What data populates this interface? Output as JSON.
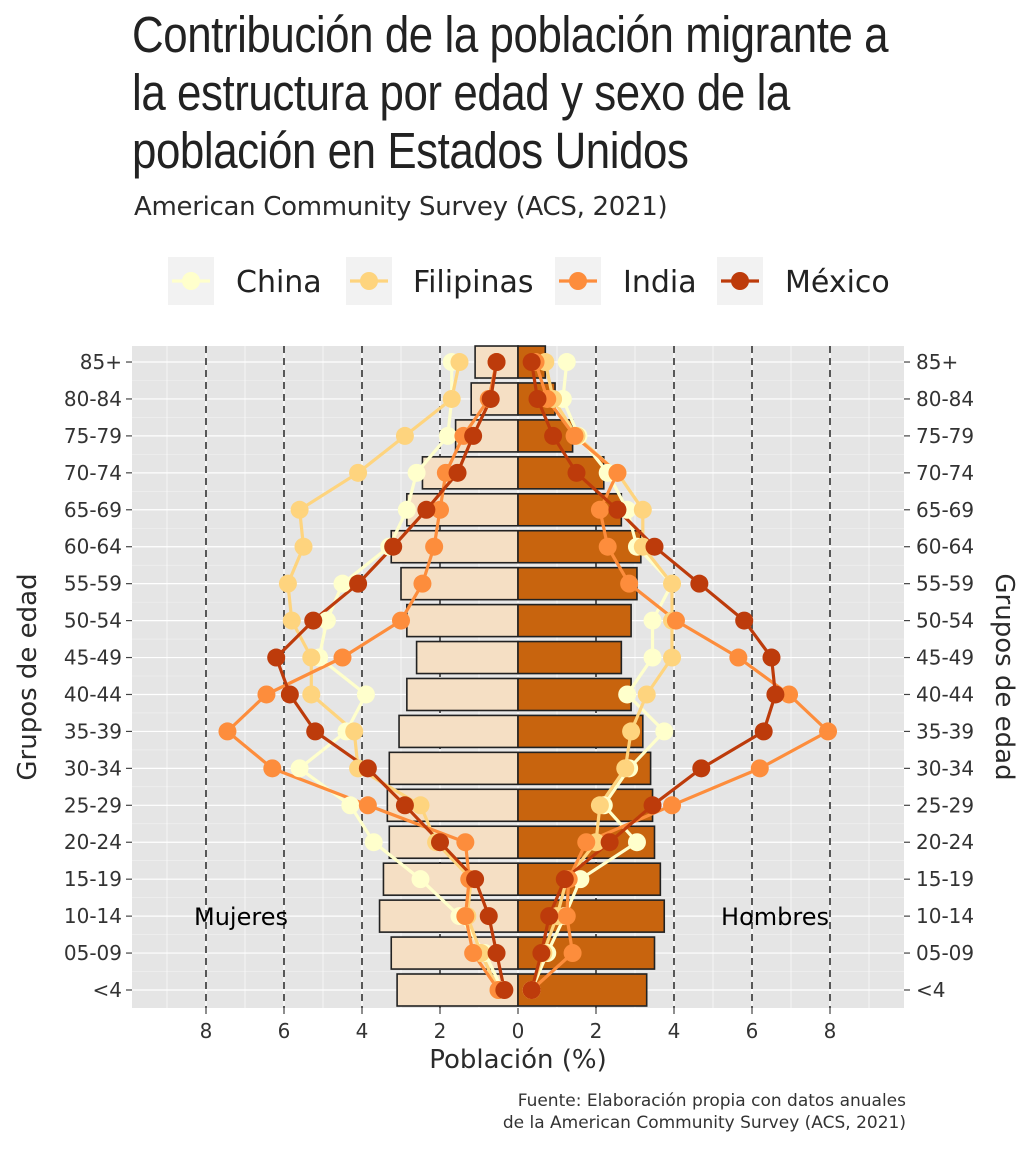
{
  "title": "Contribución de la población migrante a la estructura por edad y sexo de la población en Estados Unidos",
  "subtitle": "American Community Survey (ACS, 2021)",
  "caption_line1": "Fuente: Elaboración propia con datos anuales",
  "caption_line2": "de la American Community Survey (ACS, 2021)",
  "chart_data": {
    "type": "bar",
    "xlabel": "Población (%)",
    "ylabel": "Grupos de edad",
    "xlim": [
      -10,
      10
    ],
    "x_ticks": [
      -8,
      -6,
      -4,
      -2,
      0,
      2,
      4,
      6,
      8
    ],
    "x_tick_labels": [
      "8",
      "6",
      "4",
      "2",
      "0",
      "2",
      "4",
      "6",
      "8"
    ],
    "grid": true,
    "legend_position": "top",
    "annotations": {
      "left": "Mujeres",
      "right": "Hombres"
    },
    "categories": [
      "<4",
      "05-09",
      "10-14",
      "15-19",
      "20-24",
      "25-29",
      "30-34",
      "35-39",
      "40-44",
      "45-49",
      "50-54",
      "55-59",
      "60-64",
      "65-69",
      "70-74",
      "75-79",
      "80-84",
      "85+"
    ],
    "bar_colors": {
      "Mujeres": "#f5dfc4",
      "Hombres": "#c8640e"
    },
    "bars": {
      "Mujeres": [
        -3.1,
        -3.25,
        -3.55,
        -3.45,
        -3.3,
        -3.35,
        -3.3,
        -3.05,
        -2.85,
        -2.6,
        -2.85,
        -3.0,
        -3.25,
        -2.85,
        -2.45,
        -1.6,
        -1.2,
        -1.1
      ],
      "Hombres": [
        3.3,
        3.5,
        3.75,
        3.65,
        3.5,
        3.45,
        3.4,
        3.2,
        2.9,
        2.65,
        2.9,
        3.05,
        3.15,
        2.65,
        2.2,
        1.4,
        0.95,
        0.7
      ]
    },
    "series": [
      {
        "name": "China",
        "color": "#ffffcc",
        "mujeres": [
          -0.4,
          -0.85,
          -1.5,
          -2.5,
          -3.7,
          -4.3,
          -5.6,
          -4.4,
          -3.9,
          -5.1,
          -4.9,
          -4.5,
          -3.3,
          -2.85,
          -2.6,
          -1.8,
          -1.7,
          -1.7
        ],
        "hombres": [
          0.35,
          0.75,
          1.2,
          1.6,
          3.05,
          2.2,
          2.85,
          3.75,
          2.8,
          3.45,
          3.45,
          3.95,
          3.05,
          2.8,
          2.3,
          1.55,
          1.15,
          1.25
        ]
      },
      {
        "name": "Filipinas",
        "color": "#fed47e",
        "mujeres": [
          -0.5,
          -0.95,
          -1.3,
          -1.2,
          -2.1,
          -2.5,
          -4.1,
          -4.2,
          -5.3,
          -5.3,
          -5.8,
          -5.9,
          -5.5,
          -5.6,
          -4.1,
          -2.9,
          -1.7,
          -1.5
        ],
        "hombres": [
          0.35,
          0.65,
          1.0,
          1.25,
          2.0,
          2.1,
          2.75,
          2.9,
          3.3,
          3.95,
          3.95,
          3.95,
          3.2,
          3.2,
          2.55,
          1.5,
          0.9,
          0.7
        ]
      },
      {
        "name": "India",
        "color": "#fd8d3c",
        "mujeres": [
          -0.5,
          -1.15,
          -1.35,
          -1.25,
          -1.35,
          -3.85,
          -6.3,
          -7.45,
          -6.45,
          -4.5,
          -3.0,
          -2.45,
          -2.15,
          -2.0,
          -1.85,
          -1.4,
          -0.75,
          -0.55
        ],
        "hombres": [
          0.35,
          1.4,
          1.25,
          1.3,
          1.75,
          3.95,
          6.2,
          7.95,
          6.95,
          5.65,
          4.05,
          2.85,
          2.3,
          2.1,
          2.55,
          1.45,
          0.75,
          0.45
        ]
      },
      {
        "name": "México",
        "color": "#bd3b0b",
        "mujeres": [
          -0.35,
          -0.55,
          -0.75,
          -1.1,
          -2.0,
          -2.9,
          -3.85,
          -5.2,
          -5.85,
          -6.2,
          -5.25,
          -4.1,
          -3.2,
          -2.35,
          -1.55,
          -1.15,
          -0.7,
          -0.55
        ],
        "hombres": [
          0.35,
          0.6,
          0.8,
          1.2,
          2.35,
          3.45,
          4.7,
          6.3,
          6.6,
          6.5,
          5.8,
          4.65,
          3.5,
          2.55,
          1.5,
          0.9,
          0.5,
          0.35
        ]
      }
    ]
  }
}
